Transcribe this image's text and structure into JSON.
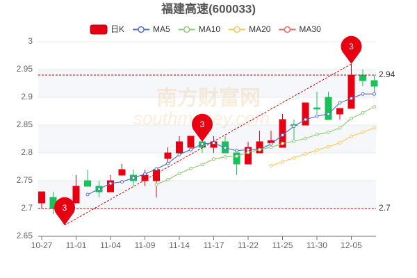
{
  "chart_data": {
    "type": "candlestick",
    "title": "福建高速(600033)",
    "watermark": [
      "南方财富网",
      "southmoney.com"
    ],
    "categories": [
      "10-27",
      null,
      null,
      "11-01",
      null,
      null,
      "11-04",
      null,
      null,
      "11-09",
      null,
      null,
      "11-14",
      null,
      null,
      "11-17",
      null,
      null,
      "11-22",
      null,
      null,
      "11-25",
      null,
      null,
      "11-30",
      null,
      null,
      "12-05",
      null,
      null
    ],
    "ylim": [
      2.65,
      3
    ],
    "yticks": [
      2.65,
      2.7,
      2.75,
      2.8,
      2.85,
      2.9,
      2.95,
      3
    ],
    "grid": true,
    "up_color": "#e60012",
    "down_color": "#19c15a",
    "series": [
      {
        "name": "日K",
        "color": "#e60012",
        "open": [
          2.71,
          2.72,
          2.69,
          2.71,
          2.75,
          2.74,
          2.73,
          2.76,
          2.76,
          2.75,
          2.75,
          2.79,
          2.8,
          2.81,
          2.82,
          2.81,
          2.82,
          2.8,
          2.78,
          2.8,
          2.818,
          2.81,
          2.851,
          2.85,
          2.881,
          2.9,
          2.87,
          2.88,
          2.94,
          2.93
        ],
        "close": [
          2.73,
          2.7,
          2.7,
          2.74,
          2.74,
          2.73,
          2.75,
          2.77,
          2.75,
          2.76,
          2.77,
          2.8,
          2.82,
          2.83,
          2.81,
          2.82,
          2.8,
          2.78,
          2.81,
          2.82,
          2.822,
          2.86,
          2.849,
          2.89,
          2.879,
          2.86,
          2.88,
          2.94,
          2.93,
          2.92
        ],
        "high": [
          2.73,
          2.73,
          2.71,
          2.76,
          2.77,
          2.75,
          2.76,
          2.78,
          2.77,
          2.77,
          2.77,
          2.81,
          2.83,
          2.83,
          2.83,
          2.83,
          2.83,
          2.8,
          2.82,
          2.84,
          2.84,
          2.87,
          2.86,
          2.89,
          2.91,
          2.91,
          2.88,
          2.96,
          2.95,
          2.94
        ],
        "low": [
          2.7,
          2.69,
          2.67,
          2.71,
          2.74,
          2.72,
          2.73,
          2.76,
          2.74,
          2.74,
          2.72,
          2.78,
          2.8,
          2.81,
          2.8,
          2.8,
          2.8,
          2.76,
          2.78,
          2.8,
          2.81,
          2.81,
          2.82,
          2.85,
          2.87,
          2.86,
          2.86,
          2.88,
          2.92,
          2.91
        ]
      },
      {
        "name": "MA5",
        "color": "#5470c6",
        "values": [
          null,
          null,
          null,
          null,
          2.725,
          2.735,
          2.745,
          2.748,
          2.755,
          2.762,
          2.771,
          2.781,
          2.797,
          2.806,
          2.816,
          2.818,
          2.809,
          2.804,
          2.806,
          2.806,
          2.816,
          2.832,
          2.848,
          2.86,
          2.866,
          2.87,
          2.89,
          2.898,
          2.906,
          2.906
        ]
      },
      {
        "name": "MA10",
        "color": "#91cc75",
        "values": [
          null,
          null,
          null,
          null,
          null,
          null,
          null,
          null,
          null,
          null,
          2.743,
          2.752,
          2.763,
          2.772,
          2.779,
          2.789,
          2.793,
          2.794,
          2.801,
          2.806,
          2.81,
          2.817,
          2.821,
          2.826,
          2.833,
          2.837,
          2.845,
          2.862,
          2.872,
          2.883
        ]
      },
      {
        "name": "MA20",
        "color": "#fac858",
        "values": [
          null,
          null,
          null,
          null,
          null,
          null,
          null,
          null,
          null,
          null,
          null,
          null,
          null,
          null,
          null,
          null,
          null,
          null,
          null,
          null,
          2.777,
          2.784,
          2.791,
          2.798,
          2.805,
          2.811,
          2.818,
          2.83,
          2.837,
          2.845
        ]
      },
      {
        "name": "MA30",
        "color": "#ee6666",
        "values": [
          null,
          null,
          null,
          null,
          null,
          null,
          null,
          null,
          null,
          null,
          null,
          null,
          null,
          null,
          null,
          null,
          null,
          null,
          null,
          null,
          null,
          null,
          null,
          null,
          null,
          null,
          null,
          null,
          null,
          null
        ]
      }
    ],
    "hlines": [
      2.94,
      2.7
    ],
    "pins": [
      {
        "label": "3",
        "at": 2,
        "value": 2.67
      },
      {
        "label": "3",
        "at": 14,
        "value": 2.82
      },
      {
        "label": "3",
        "at": 27,
        "value": 2.96
      }
    ],
    "trendline": {
      "from": [
        2,
        2.67
      ],
      "to": [
        27,
        2.96
      ]
    }
  }
}
